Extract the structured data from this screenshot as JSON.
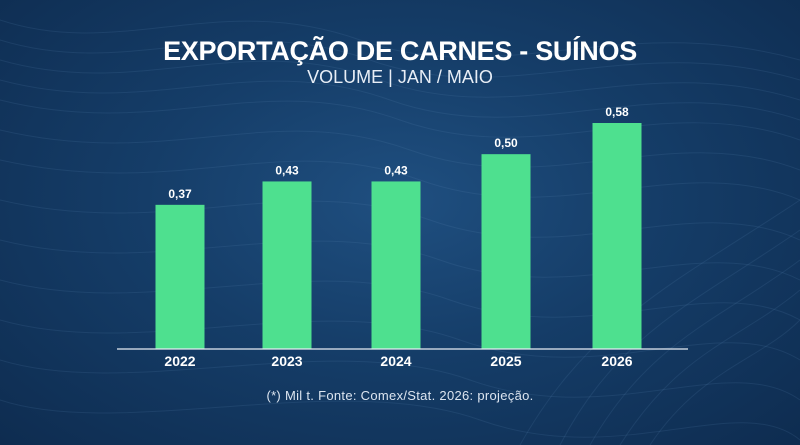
{
  "title": "EXPORTAÇÃO DE CARNES - SUÍNOS",
  "subtitle": "VOLUME  | JAN / MAIO",
  "footnote": "(*) Mil t. Fonte: Comex/Stat. 2026: projeção.",
  "colors": {
    "bar": "#4ee08f",
    "background": "#153d68",
    "axis": "#e6ecf3",
    "text": "#ffffff"
  },
  "chart_data": {
    "type": "bar",
    "categories": [
      "2022",
      "2023",
      "2024",
      "2025",
      "2026"
    ],
    "values": [
      0.37,
      0.43,
      0.43,
      0.5,
      0.58
    ],
    "value_labels": [
      "0,37",
      "0,43",
      "0,43",
      "0,50",
      "0,58"
    ],
    "title": "EXPORTAÇÃO DE CARNES - SUÍNOS",
    "subtitle": "VOLUME  | JAN / MAIO",
    "xlabel": "",
    "ylabel": "",
    "ylim": [
      0,
      0.58
    ],
    "grid": false,
    "legend": "none"
  }
}
